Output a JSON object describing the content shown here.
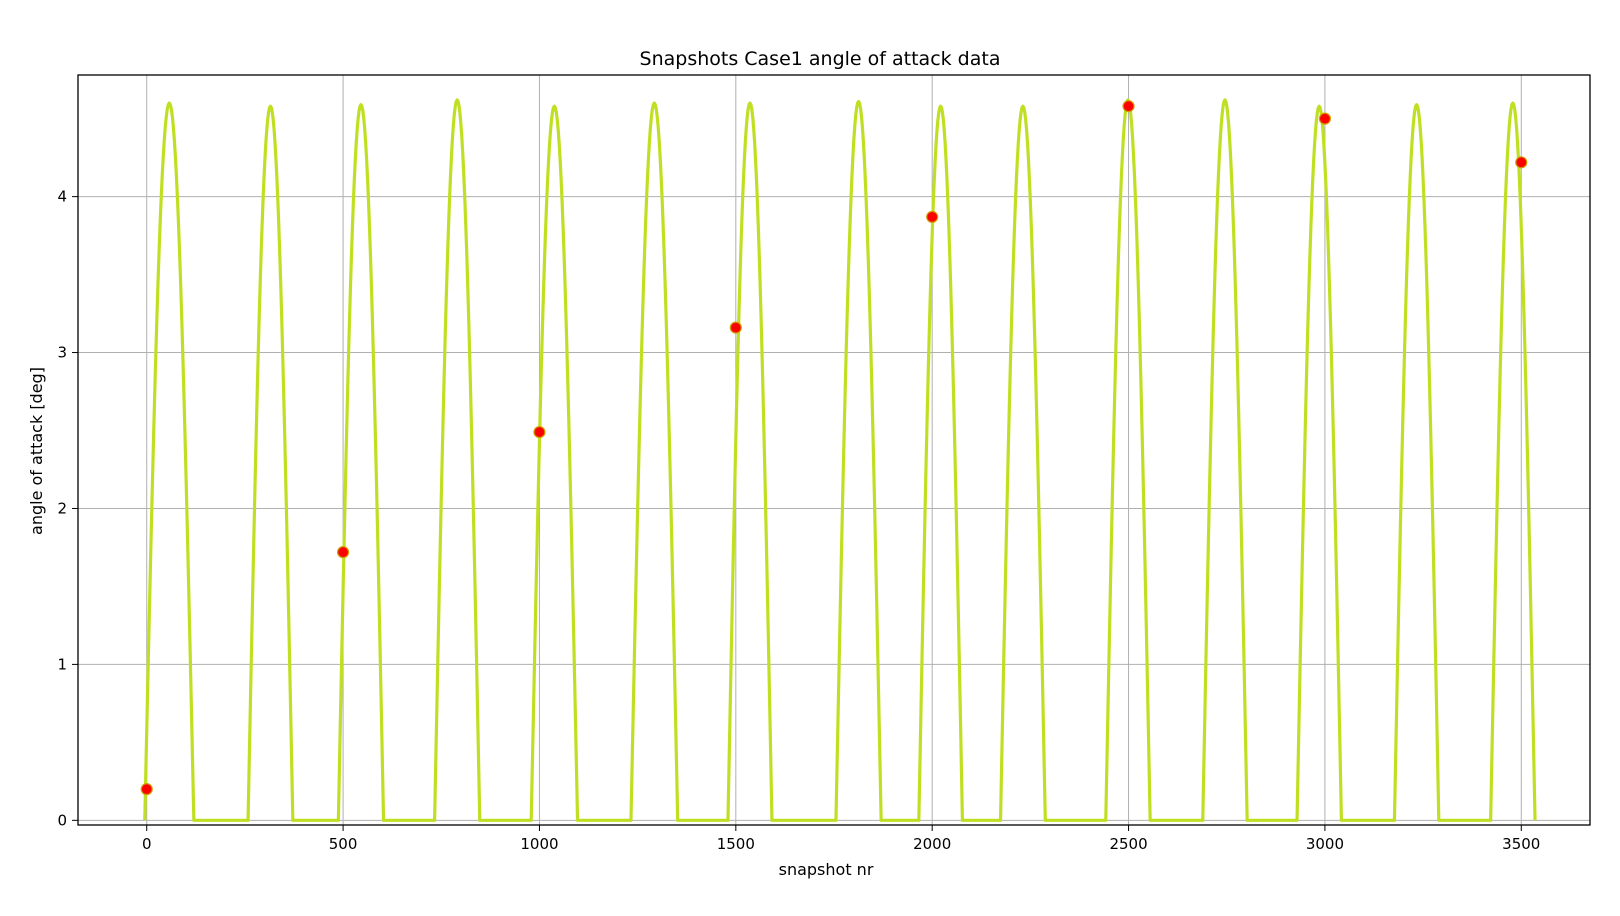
{
  "chart_data": {
    "type": "line",
    "title": "Snapshots Case1 angle of attack data",
    "xlabel": "snapshot nr",
    "ylabel": "angle of attack [deg]",
    "xlim": [
      -175,
      3675
    ],
    "ylim": [
      -0.03,
      4.78
    ],
    "xticks": [
      0,
      500,
      1000,
      1500,
      2000,
      2500,
      3000,
      3500
    ],
    "yticks": [
      0,
      1,
      2,
      3,
      4
    ],
    "grid": true,
    "legend": "none",
    "colors": {
      "line": "#bfe022",
      "points": "#ff0000",
      "points_edge": "#cfa000",
      "grid": "#b0b0b0"
    },
    "series": [
      {
        "kind": "line",
        "description_lobes": "half-sine pulses, [start, end, peak]",
        "lobes": [
          [
            -5,
            120,
            4.6
          ],
          [
            258,
            372,
            4.58
          ],
          [
            488,
            603,
            4.59
          ],
          [
            733,
            848,
            4.62
          ],
          [
            979,
            1097,
            4.58
          ],
          [
            1233,
            1352,
            4.6
          ],
          [
            1480,
            1592,
            4.6
          ],
          [
            1755,
            1870,
            4.61
          ],
          [
            1966,
            2077,
            4.58
          ],
          [
            2174,
            2288,
            4.58
          ],
          [
            2442,
            2555,
            4.62
          ],
          [
            2689,
            2802,
            4.62
          ],
          [
            2929,
            3042,
            4.58
          ],
          [
            3177,
            3290,
            4.59
          ],
          [
            3422,
            3535,
            4.6
          ]
        ]
      },
      {
        "kind": "scatter",
        "x": [
          0,
          500,
          1000,
          1500,
          2000,
          2500,
          3000,
          3500
        ],
        "y": [
          0.2,
          1.72,
          2.49,
          3.16,
          3.87,
          4.58,
          4.5,
          4.22
        ]
      }
    ]
  }
}
